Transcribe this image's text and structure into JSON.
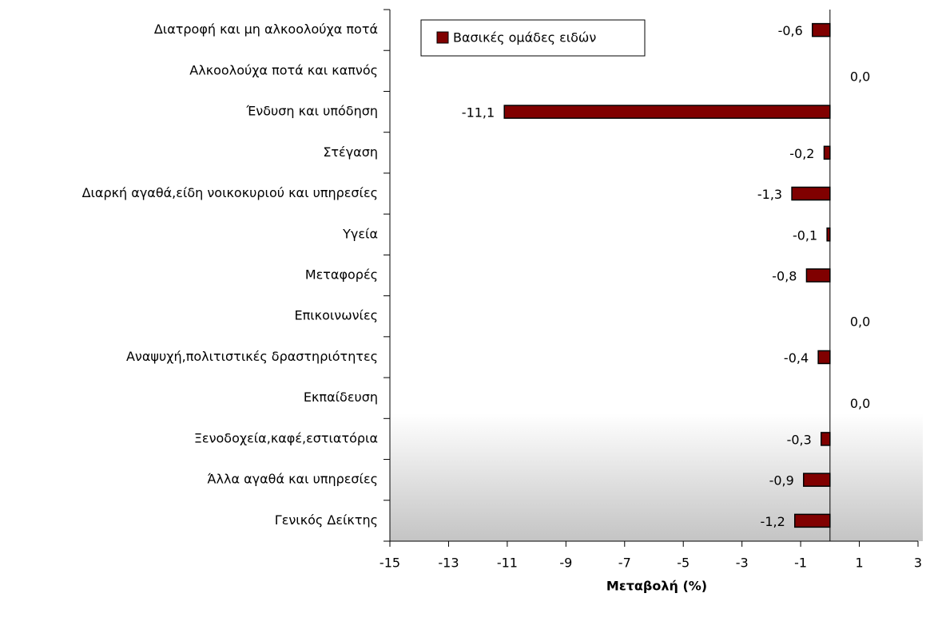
{
  "chart_data": {
    "type": "hbar",
    "categories": [
      "Διατροφή και μη αλκοολούχα ποτά",
      "Αλκοολούχα ποτά και καπνός",
      "Ένδυση και υπόδηση",
      "Στέγαση",
      "Διαρκή αγαθά,είδη νοικοκυριού και υπηρεσίες",
      "Υγεία",
      "Μεταφορές",
      "Επικοινωνίες",
      "Αναψυχή,πολιτιστικές δραστηριότητες",
      "Εκπαίδευση",
      "Ξενοδοχεία,καφέ,εστιατόρια",
      "Άλλα αγαθά και υπηρεσίες",
      "Γενικός Δείκτης"
    ],
    "series": [
      {
        "name": "Βασικές ομάδες ειδών",
        "color": "#800000",
        "values": [
          -0.6,
          0.0,
          -11.1,
          -0.2,
          -1.3,
          -0.1,
          -0.8,
          0.0,
          -0.4,
          0.0,
          -0.3,
          -0.9,
          -1.2
        ],
        "value_labels": [
          "-0,6",
          "0,0",
          "-11,1",
          "-0,2",
          "-1,3",
          "-0,1",
          "-0,8",
          "0,0",
          "-0,4",
          "0,0",
          "-0,3",
          "-0,9",
          "-1,2"
        ]
      }
    ],
    "x_label": "Μεταβολή (%)",
    "xlim": [
      -15,
      3
    ],
    "xticks": [
      -15,
      -13,
      -11,
      -9,
      -7,
      -5,
      -3,
      -1,
      1,
      3
    ],
    "grid": false,
    "legend": "top-left"
  }
}
